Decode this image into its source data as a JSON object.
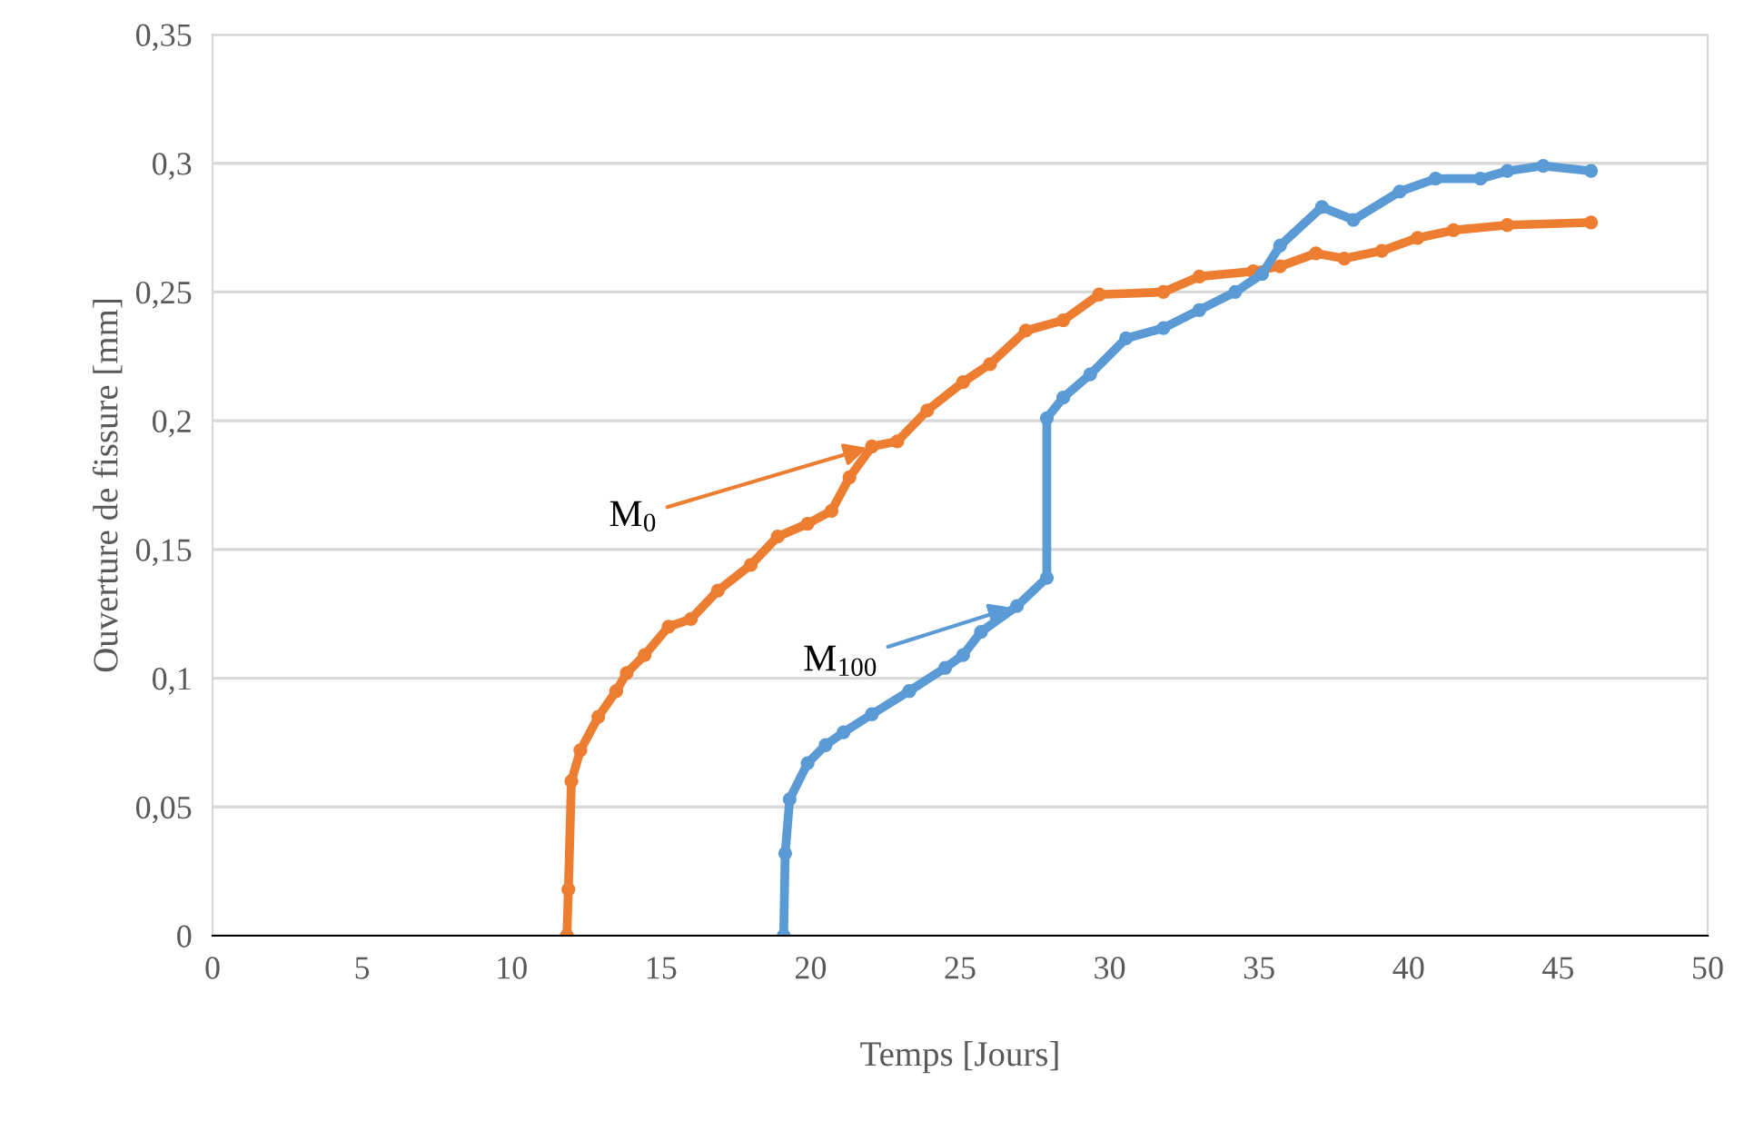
{
  "chart_data": {
    "type": "line",
    "xlabel": "Temps [Jours]",
    "ylabel": "Ouverture de fissure [mm]",
    "xlim": [
      0,
      50
    ],
    "xticks": [
      0,
      5,
      10,
      15,
      20,
      25,
      30,
      35,
      40,
      45,
      50
    ],
    "ylim": [
      0,
      0.35
    ],
    "yticks": [
      {
        "value": 0,
        "label": "0"
      },
      {
        "value": 0.05,
        "label": "0,05"
      },
      {
        "value": 0.1,
        "label": "0,1"
      },
      {
        "value": 0.15,
        "label": "0,15"
      },
      {
        "value": 0.2,
        "label": "0,2"
      },
      {
        "value": 0.25,
        "label": "0,25"
      },
      {
        "value": 0.3,
        "label": "0,3"
      },
      {
        "value": 0.35,
        "label": "0,35"
      }
    ],
    "grid": "y",
    "legend": false,
    "marker": "circle",
    "line_style": "solid",
    "series": [
      {
        "color": "#ed7d31",
        "x": [
          11.85,
          11.9,
          12.0,
          12.3,
          12.9,
          13.5,
          13.85,
          14.45,
          15.25,
          16.0,
          16.9,
          18.0,
          18.9,
          19.9,
          20.7,
          21.3,
          22.05,
          22.9,
          23.9,
          25.1,
          26.0,
          27.2,
          28.45,
          29.65,
          31.8,
          33.0,
          34.8,
          35.7,
          36.9,
          37.85,
          39.1,
          40.3,
          41.5,
          43.3,
          46.1
        ],
        "values": [
          0,
          0.018,
          0.06,
          0.072,
          0.085,
          0.095,
          0.102,
          0.109,
          0.12,
          0.123,
          0.134,
          0.144,
          0.155,
          0.16,
          0.165,
          0.178,
          0.19,
          0.192,
          0.204,
          0.215,
          0.222,
          0.235,
          0.239,
          0.249,
          0.25,
          0.256,
          0.258,
          0.26,
          0.265,
          0.263,
          0.266,
          0.271,
          0.274,
          0.276,
          0.277
        ]
      },
      {
        "color": "#5b9bd5",
        "x": [
          19.1,
          19.15,
          19.3,
          19.9,
          20.5,
          21.1,
          22.05,
          23.3,
          24.5,
          25.1,
          25.7,
          26.9,
          27.9,
          27.9,
          28.45,
          29.35,
          30.55,
          31.8,
          33.0,
          34.2,
          35.1,
          35.7,
          37.1,
          38.15,
          39.7,
          40.9,
          42.4,
          43.3,
          44.5,
          46.1
        ],
        "values": [
          0,
          0.032,
          0.053,
          0.067,
          0.074,
          0.079,
          0.086,
          0.095,
          0.104,
          0.109,
          0.118,
          0.128,
          0.139,
          0.201,
          0.209,
          0.218,
          0.232,
          0.236,
          0.243,
          0.25,
          0.257,
          0.268,
          0.283,
          0.278,
          0.289,
          0.294,
          0.294,
          0.297,
          0.299,
          0.297
        ]
      }
    ],
    "annotations": [
      {
        "text": "M$_{0}$",
        "x": 22.05,
        "y": 0.19
      },
      {
        "text": "M$_{100}$",
        "x": 26.9,
        "y": 0.128
      }
    ]
  }
}
